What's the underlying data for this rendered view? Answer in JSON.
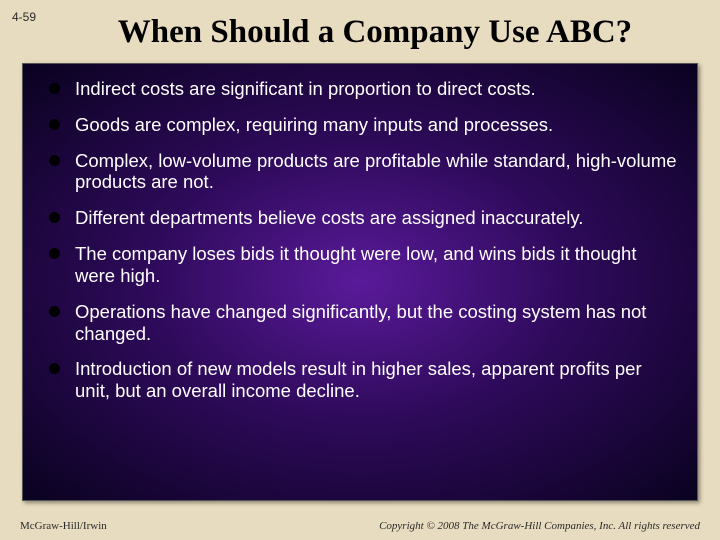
{
  "slideNumber": "4-59",
  "title": "When Should a Company Use ABC?",
  "bullets": [
    "Indirect costs are significant in proportion to direct costs.",
    "Goods are complex, requiring many inputs and processes.",
    "Complex, low-volume products are profitable while standard, high-volume products are not.",
    "Different departments believe costs are assigned inaccurately.",
    "The company loses bids it thought were low, and wins bids it thought were high.",
    "Operations have changed significantly, but the costing system has not changed.",
    "Introduction of new models result in higher sales, apparent profits per unit, but an overall income decline."
  ],
  "footerLeft": "McGraw-Hill/Irwin",
  "footerRight": "Copyright © 2008 The McGraw-Hill Companies, Inc. All rights reserved",
  "colors": {
    "pageBackground": "#e8dcc0",
    "boxGradientInner": "#5a1a9a",
    "boxGradientMid": "#2e0a5a",
    "boxGradientOuter": "#0a0220",
    "text": "#ffffff",
    "bulletMarker": "#000000",
    "titleColor": "#000000"
  },
  "fonts": {
    "titleFamily": "Times New Roman",
    "titleSize": 33,
    "bodyFamily": "Arial",
    "bodySize": 18.5,
    "footerFamily": "Times New Roman",
    "footerSize": 11
  }
}
